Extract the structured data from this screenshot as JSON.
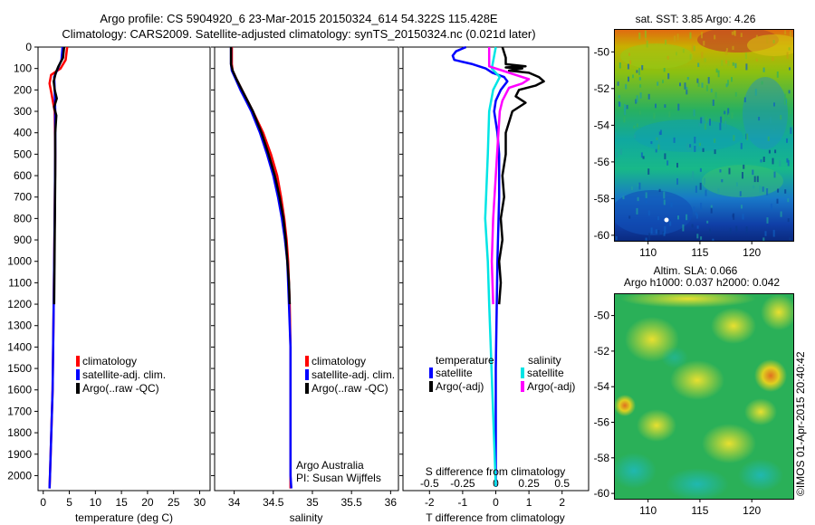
{
  "header": {
    "line1": "Argo profile: CS 5904920_6 23-Mar-2015 20150324_614 54.322S 115.428E",
    "line2": "Climatology: CARS2009. Satellite-adjusted climatology: synTS_20150324.nc (0.021d later)"
  },
  "colors": {
    "climatology": "#ff0000",
    "satellite_adj": "#0000ff",
    "argo": "#000000",
    "satellite_s": "#00e5e5",
    "argo_s": "#ff00ff"
  },
  "depth_ticks": [
    0,
    100,
    200,
    300,
    400,
    500,
    600,
    700,
    800,
    900,
    1000,
    1100,
    1200,
    1300,
    1400,
    1500,
    1600,
    1700,
    1800,
    1900,
    2000
  ],
  "chart_data": [
    {
      "type": "line",
      "xlabel": "temperature (deg C)",
      "xticks": [
        "0",
        "5",
        "10",
        "15",
        "20",
        "25",
        "30"
      ],
      "xlim": [
        -1,
        32
      ],
      "ylim": [
        2070,
        0
      ],
      "legend": [
        "climatology",
        "satellite-adj. clim.",
        "Argo(..raw -QC)"
      ],
      "series": [
        {
          "name": "climatology",
          "color": "#ff0000",
          "depth": [
            0,
            60,
            100,
            130,
            170,
            220,
            300,
            500,
            800,
            1200,
            1600,
            2000,
            2060
          ],
          "values": [
            4.6,
            4.3,
            3.3,
            1.5,
            1.2,
            1.6,
            2.2,
            2.3,
            2.2,
            2.0,
            1.8,
            1.3,
            1.2
          ]
        },
        {
          "name": "satellite-adj. clim.",
          "color": "#0000ff",
          "depth": [
            0,
            60,
            100,
            140,
            200,
            300,
            500,
            800,
            1200,
            1600,
            2000,
            2060
          ],
          "values": [
            3.7,
            3.5,
            2.8,
            2.1,
            2.2,
            2.3,
            2.3,
            2.2,
            2.0,
            1.8,
            1.3,
            1.2
          ]
        },
        {
          "name": "Argo(..raw -QC)",
          "color": "#000000",
          "depth": [
            0,
            50,
            90,
            120,
            160,
            200,
            240,
            280,
            320,
            400,
            600,
            900,
            1200
          ],
          "values": [
            4.0,
            3.8,
            2.9,
            2.4,
            2.0,
            2.2,
            2.6,
            2.1,
            2.5,
            2.3,
            2.3,
            2.2,
            2.1
          ]
        }
      ]
    },
    {
      "type": "line",
      "xlabel": "salinity",
      "xticks": [
        "34",
        "34.5",
        "35",
        "35.5",
        "36"
      ],
      "xlim": [
        33.75,
        36.1
      ],
      "ylim": [
        2070,
        0
      ],
      "legend": [
        "climatology",
        "satellite-adj. clim.",
        "Argo(..raw -QC)"
      ],
      "annotation": [
        "Argo Australia",
        "PI: Susan Wijffels"
      ],
      "series": [
        {
          "name": "climatology",
          "color": "#ff0000",
          "depth": [
            0,
            80,
            110,
            150,
            200,
            250,
            300,
            400,
            500,
            600,
            700,
            800,
            900,
            1000,
            1200,
            1400,
            1600,
            1800,
            2000,
            2060
          ],
          "values": [
            33.97,
            33.97,
            33.98,
            34.03,
            34.1,
            34.17,
            34.24,
            34.37,
            34.47,
            34.55,
            34.6,
            34.64,
            34.67,
            34.69,
            34.71,
            34.72,
            34.72,
            34.72,
            34.72,
            34.72
          ]
        },
        {
          "name": "satellite-adj. clim.",
          "color": "#0000ff",
          "depth": [
            0,
            80,
            110,
            150,
            200,
            250,
            300,
            400,
            500,
            600,
            700,
            800,
            900,
            1000,
            1200,
            1400,
            1600,
            1800,
            2000,
            2060
          ],
          "values": [
            33.96,
            33.96,
            33.97,
            34.02,
            34.08,
            34.15,
            34.22,
            34.33,
            34.42,
            34.5,
            34.56,
            34.61,
            34.65,
            34.68,
            34.7,
            34.72,
            34.72,
            34.72,
            34.72,
            34.73
          ]
        },
        {
          "name": "Argo(..raw -QC)",
          "color": "#000000",
          "depth": [
            0,
            80,
            110,
            150,
            200,
            250,
            300,
            400,
            500,
            600,
            700,
            800,
            900,
            1000,
            1100,
            1200
          ],
          "values": [
            33.96,
            33.96,
            33.98,
            34.03,
            34.1,
            34.17,
            34.24,
            34.35,
            34.44,
            34.52,
            34.58,
            34.63,
            34.66,
            34.68,
            34.7,
            34.71
          ]
        }
      ]
    },
    {
      "type": "line",
      "xlabel": "T difference from climatology",
      "x2label": "S difference from climatology",
      "xticks": [
        "-2",
        "-1",
        "0",
        "1",
        "2"
      ],
      "x2ticks": [
        "-0.5",
        "-0.25",
        "0",
        "0.25",
        "0.5"
      ],
      "xlim": [
        -2.8,
        2.8
      ],
      "ylim": [
        2070,
        0
      ],
      "legend_titles": [
        "temperature",
        "salinity"
      ],
      "legend": [
        "satellite",
        "Argo(-adj)",
        "satellite",
        "Argo(-adj)"
      ],
      "series": [
        {
          "name": "temperature satellite",
          "color": "#0000ff",
          "depth": [
            0,
            20,
            40,
            60,
            80,
            100,
            120,
            140,
            160,
            200,
            250,
            300,
            400,
            500,
            700,
            1000,
            1500,
            2000,
            2050
          ],
          "values": [
            -0.9,
            -1.2,
            -1.3,
            -1.25,
            -0.7,
            -0.3,
            -0.1,
            0.25,
            0.35,
            0.15,
            0.0,
            -0.05,
            0.05,
            0.1,
            0.1,
            0.05,
            0.0,
            0.0,
            0.0
          ]
        },
        {
          "name": "temperature Argo(-adj)",
          "color": "#000000",
          "depth": [
            0,
            50,
            80,
            90,
            95,
            100,
            110,
            120,
            140,
            160,
            180,
            200,
            230,
            260,
            300,
            400,
            500,
            600,
            700,
            800,
            900,
            1000,
            1100,
            1200
          ],
          "values": [
            0.2,
            0.3,
            0.3,
            0.9,
            0.3,
            0.8,
            0.4,
            1.0,
            1.3,
            1.45,
            1.2,
            0.7,
            0.6,
            0.9,
            0.5,
            0.3,
            0.3,
            0.2,
            0.25,
            0.15,
            0.2,
            0.1,
            0.15,
            0.1
          ]
        },
        {
          "name": "salinity satellite",
          "color": "#00e5e5",
          "depth": [
            0,
            100,
            140,
            200,
            300,
            500,
            800,
            1000,
            1200,
            2050
          ],
          "values": [
            0.0,
            -0.03,
            0.03,
            -0.02,
            -0.05,
            -0.06,
            -0.08,
            -0.06,
            -0.05,
            0.0
          ]
        },
        {
          "name": "salinity Argo(-adj)",
          "color": "#ff00ff",
          "depth": [
            0,
            90,
            110,
            130,
            150,
            170,
            190,
            250,
            300,
            400,
            600,
            800,
            1000,
            1200
          ],
          "values": [
            -0.05,
            -0.05,
            0.05,
            0.15,
            0.25,
            0.2,
            0.1,
            0.05,
            0.03,
            0.02,
            0.0,
            -0.02,
            -0.03,
            -0.02
          ]
        }
      ]
    },
    {
      "type": "heatmap",
      "title": "sat. SST: 3.85 Argo: 4.26",
      "xticks": [
        "110",
        "115",
        "120"
      ],
      "yticks": [
        "-50",
        "-52",
        "-54",
        "-56",
        "-58",
        "-60"
      ],
      "xlim": [
        106.8,
        124
      ],
      "ylim": [
        -60.3,
        -48.8
      ]
    },
    {
      "type": "heatmap",
      "title": "Altim. SLA: 0.066",
      "subtitle": "Argo h1000: 0.037 h2000: 0.042",
      "xticks": [
        "110",
        "115",
        "120"
      ],
      "yticks": [
        "-50",
        "-52",
        "-54",
        "-56",
        "-58",
        "-60"
      ],
      "xlim": [
        106.8,
        124
      ],
      "ylim": [
        -60.3,
        -48.8
      ]
    }
  ],
  "watermark": "©IMOS 01-Apr-2015 20:40:42"
}
